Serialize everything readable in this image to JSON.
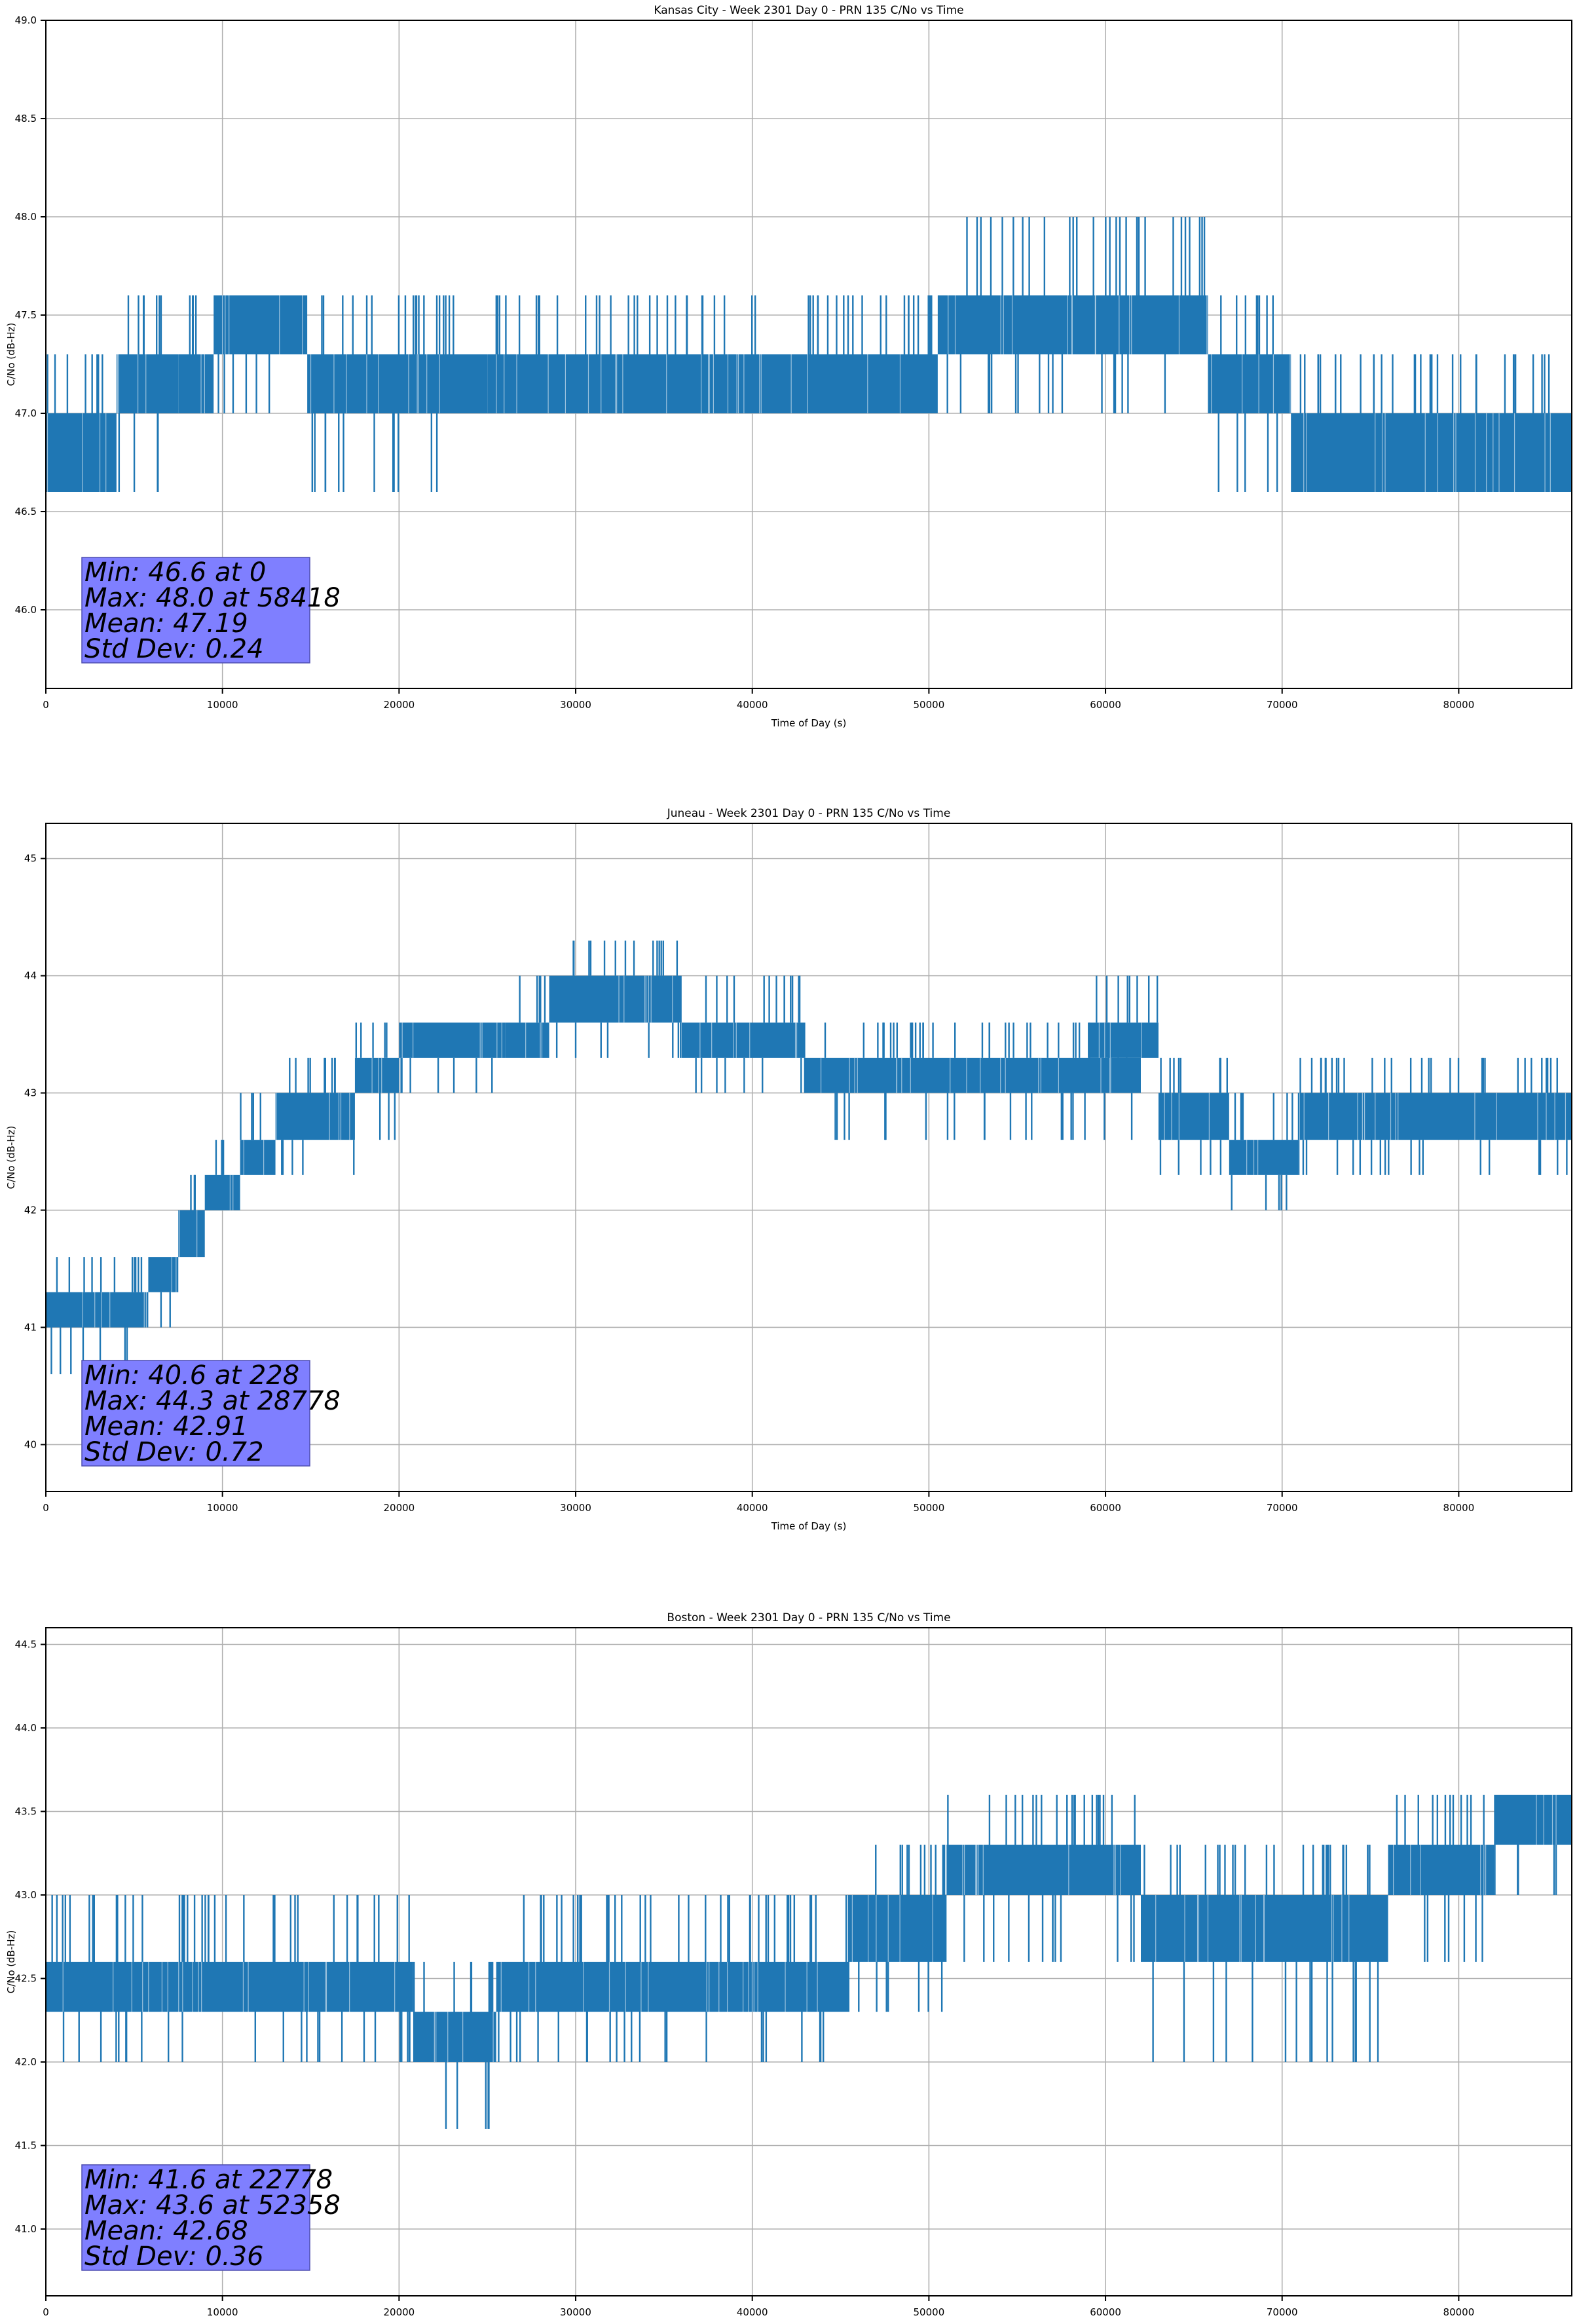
{
  "chart_data": [
    {
      "type": "line",
      "title": "Kansas City - Week 2301 Day 0 - PRN 135 C/No vs Time",
      "xlabel": "Time of Day (s)",
      "ylabel": "C/No (dB-Hz)",
      "xlim": [
        0,
        86400
      ],
      "ylim": [
        45.6,
        49.0
      ],
      "xticks": [
        0,
        10000,
        20000,
        30000,
        40000,
        50000,
        60000,
        70000,
        80000
      ],
      "xtick_labels": [
        "0",
        "10000",
        "20000",
        "30000",
        "40000",
        "50000",
        "60000",
        "70000",
        "80000"
      ],
      "yticks": [
        46.0,
        46.5,
        47.0,
        47.5,
        48.0,
        48.5,
        49.0
      ],
      "ytick_labels": [
        "46.0",
        "46.5",
        "47.0",
        "47.5",
        "48.0",
        "48.5",
        "49.0"
      ],
      "grid": true,
      "color": "#1f77b4",
      "bands": [
        {
          "x": [
            0,
            4000
          ],
          "low": 46.6,
          "high": 47.0,
          "spikes_up": [
            47.3
          ],
          "spikes_down": []
        },
        {
          "x": [
            4000,
            7500
          ],
          "low": 47.0,
          "high": 47.3,
          "spikes_up": [
            47.6
          ],
          "spikes_down": [
            46.6
          ]
        },
        {
          "x": [
            7500,
            9500
          ],
          "low": 47.0,
          "high": 47.3,
          "spikes_up": [
            47.6
          ],
          "spikes_down": []
        },
        {
          "x": [
            9500,
            14800
          ],
          "low": 47.3,
          "high": 47.6,
          "spikes_up": [],
          "spikes_down": [
            47.0
          ]
        },
        {
          "x": [
            14800,
            25000
          ],
          "low": 47.0,
          "high": 47.3,
          "spikes_up": [
            47.6
          ],
          "spikes_down": [
            46.6
          ]
        },
        {
          "x": [
            25000,
            37500
          ],
          "low": 47.0,
          "high": 47.3,
          "spikes_up": [
            47.6
          ],
          "spikes_down": []
        },
        {
          "x": [
            37500,
            50500
          ],
          "low": 47.0,
          "high": 47.3,
          "spikes_up": [
            47.6
          ],
          "spikes_down": []
        },
        {
          "x": [
            50500,
            65800
          ],
          "low": 47.3,
          "high": 47.6,
          "spikes_up": [
            48.0
          ],
          "spikes_down": [
            47.0
          ]
        },
        {
          "x": [
            65800,
            70500
          ],
          "low": 47.0,
          "high": 47.3,
          "spikes_up": [
            47.6
          ],
          "spikes_down": [
            46.6
          ]
        },
        {
          "x": [
            70500,
            86400
          ],
          "low": 46.6,
          "high": 47.0,
          "spikes_up": [
            47.3
          ],
          "spikes_down": []
        }
      ],
      "stats": {
        "min": "Min: 46.6 at 0",
        "max": "Max: 48.0 at 58418",
        "mean": "Mean: 47.19",
        "std": "Std Dev: 0.24"
      }
    },
    {
      "type": "line",
      "title": "Juneau - Week 2301 Day 0 - PRN 135 C/No vs Time",
      "xlabel": "Time of Day (s)",
      "ylabel": "C/No (dB-Hz)",
      "xlim": [
        0,
        86400
      ],
      "ylim": [
        39.6,
        45.3
      ],
      "xticks": [
        0,
        10000,
        20000,
        30000,
        40000,
        50000,
        60000,
        70000,
        80000
      ],
      "xtick_labels": [
        "0",
        "10000",
        "20000",
        "30000",
        "40000",
        "50000",
        "60000",
        "70000",
        "80000"
      ],
      "yticks": [
        40,
        41,
        42,
        43,
        44,
        45
      ],
      "ytick_labels": [
        "40",
        "41",
        "42",
        "43",
        "44",
        "45"
      ],
      "grid": true,
      "color": "#1f77b4",
      "bands": [
        {
          "x": [
            0,
            5800
          ],
          "low": 41.0,
          "high": 41.3,
          "spikes_up": [
            41.6
          ],
          "spikes_down": [
            40.6
          ]
        },
        {
          "x": [
            5800,
            7500
          ],
          "low": 41.3,
          "high": 41.6,
          "spikes_up": [],
          "spikes_down": [
            41.0
          ]
        },
        {
          "x": [
            7500,
            9000
          ],
          "low": 41.6,
          "high": 42.0,
          "spikes_up": [
            42.3
          ],
          "spikes_down": [
            41.6
          ]
        },
        {
          "x": [
            9000,
            11000
          ],
          "low": 42.0,
          "high": 42.3,
          "spikes_up": [
            42.6
          ],
          "spikes_down": []
        },
        {
          "x": [
            11000,
            13000
          ],
          "low": 42.3,
          "high": 42.6,
          "spikes_up": [
            43.0
          ],
          "spikes_down": []
        },
        {
          "x": [
            13000,
            17500
          ],
          "low": 42.6,
          "high": 43.0,
          "spikes_up": [
            43.3
          ],
          "spikes_down": [
            42.3
          ]
        },
        {
          "x": [
            17500,
            20000
          ],
          "low": 43.0,
          "high": 43.3,
          "spikes_up": [
            43.6
          ],
          "spikes_down": [
            42.6
          ]
        },
        {
          "x": [
            20000,
            26000
          ],
          "low": 43.3,
          "high": 43.6,
          "spikes_up": [],
          "spikes_down": [
            43.0
          ]
        },
        {
          "x": [
            26000,
            28500
          ],
          "low": 43.3,
          "high": 43.6,
          "spikes_up": [
            44.0
          ],
          "spikes_down": []
        },
        {
          "x": [
            28500,
            36000
          ],
          "low": 43.6,
          "high": 44.0,
          "spikes_up": [
            44.3
          ],
          "spikes_down": [
            43.3
          ]
        },
        {
          "x": [
            36000,
            43000
          ],
          "low": 43.3,
          "high": 43.6,
          "spikes_up": [
            44.0
          ],
          "spikes_down": [
            43.0
          ]
        },
        {
          "x": [
            43000,
            62000
          ],
          "low": 43.0,
          "high": 43.3,
          "spikes_up": [
            43.6
          ],
          "spikes_down": [
            42.6
          ]
        },
        {
          "x": [
            59000,
            63000
          ],
          "low": 43.3,
          "high": 43.6,
          "spikes_up": [
            44.0
          ],
          "spikes_down": []
        },
        {
          "x": [
            63000,
            67000
          ],
          "low": 42.6,
          "high": 43.0,
          "spikes_up": [
            43.3
          ],
          "spikes_down": [
            42.3
          ]
        },
        {
          "x": [
            67000,
            71000
          ],
          "low": 42.3,
          "high": 42.6,
          "spikes_up": [
            43.0
          ],
          "spikes_down": [
            42.0
          ]
        },
        {
          "x": [
            71000,
            86400
          ],
          "low": 42.6,
          "high": 43.0,
          "spikes_up": [
            43.3
          ],
          "spikes_down": [
            42.3
          ]
        }
      ],
      "stats": {
        "min": "Min: 40.6 at 228",
        "max": "Max: 44.3 at 28778",
        "mean": "Mean: 42.91",
        "std": "Std Dev: 0.72"
      }
    },
    {
      "type": "line",
      "title": "Boston - Week 2301 Day 0 - PRN 135 C/No vs Time",
      "xlabel": "Time of Day (s)",
      "ylabel": "C/No (dB-Hz)",
      "xlim": [
        0,
        86400
      ],
      "ylim": [
        40.6,
        44.6
      ],
      "xticks": [
        0,
        10000,
        20000,
        30000,
        40000,
        50000,
        60000,
        70000,
        80000
      ],
      "xtick_labels": [
        "0",
        "10000",
        "20000",
        "30000",
        "40000",
        "50000",
        "60000",
        "70000",
        "80000"
      ],
      "yticks": [
        41.0,
        41.5,
        42.0,
        42.5,
        43.0,
        43.5,
        44.0,
        44.5
      ],
      "ytick_labels": [
        "41.0",
        "41.5",
        "42.0",
        "42.5",
        "43.0",
        "43.5",
        "44.0",
        "44.5"
      ],
      "grid": true,
      "color": "#1f77b4",
      "bands": [
        {
          "x": [
            0,
            20800
          ],
          "low": 42.3,
          "high": 42.6,
          "spikes_up": [
            43.0
          ],
          "spikes_down": [
            42.0
          ]
        },
        {
          "x": [
            20800,
            25500
          ],
          "low": 42.0,
          "high": 42.3,
          "spikes_up": [
            42.6
          ],
          "spikes_down": [
            41.6
          ]
        },
        {
          "x": [
            25500,
            45500
          ],
          "low": 42.3,
          "high": 42.6,
          "spikes_up": [
            43.0
          ],
          "spikes_down": [
            42.0
          ]
        },
        {
          "x": [
            45500,
            51000
          ],
          "low": 42.6,
          "high": 43.0,
          "spikes_up": [
            43.3
          ],
          "spikes_down": [
            42.3
          ]
        },
        {
          "x": [
            51000,
            62000
          ],
          "low": 43.0,
          "high": 43.3,
          "spikes_up": [
            43.6
          ],
          "spikes_down": [
            42.6
          ]
        },
        {
          "x": [
            62000,
            76000
          ],
          "low": 42.6,
          "high": 43.0,
          "spikes_up": [
            43.3
          ],
          "spikes_down": [
            42.0
          ]
        },
        {
          "x": [
            76000,
            82000
          ],
          "low": 43.0,
          "high": 43.3,
          "spikes_up": [
            43.6
          ],
          "spikes_down": [
            42.6
          ]
        },
        {
          "x": [
            82000,
            86400
          ],
          "low": 43.3,
          "high": 43.6,
          "spikes_up": [],
          "spikes_down": [
            43.0
          ]
        }
      ],
      "stats": {
        "min": "Min: 41.6 at 22778",
        "max": "Max: 43.6 at 52358",
        "mean": "Mean: 42.68",
        "std": "Std Dev: 0.36"
      }
    }
  ]
}
